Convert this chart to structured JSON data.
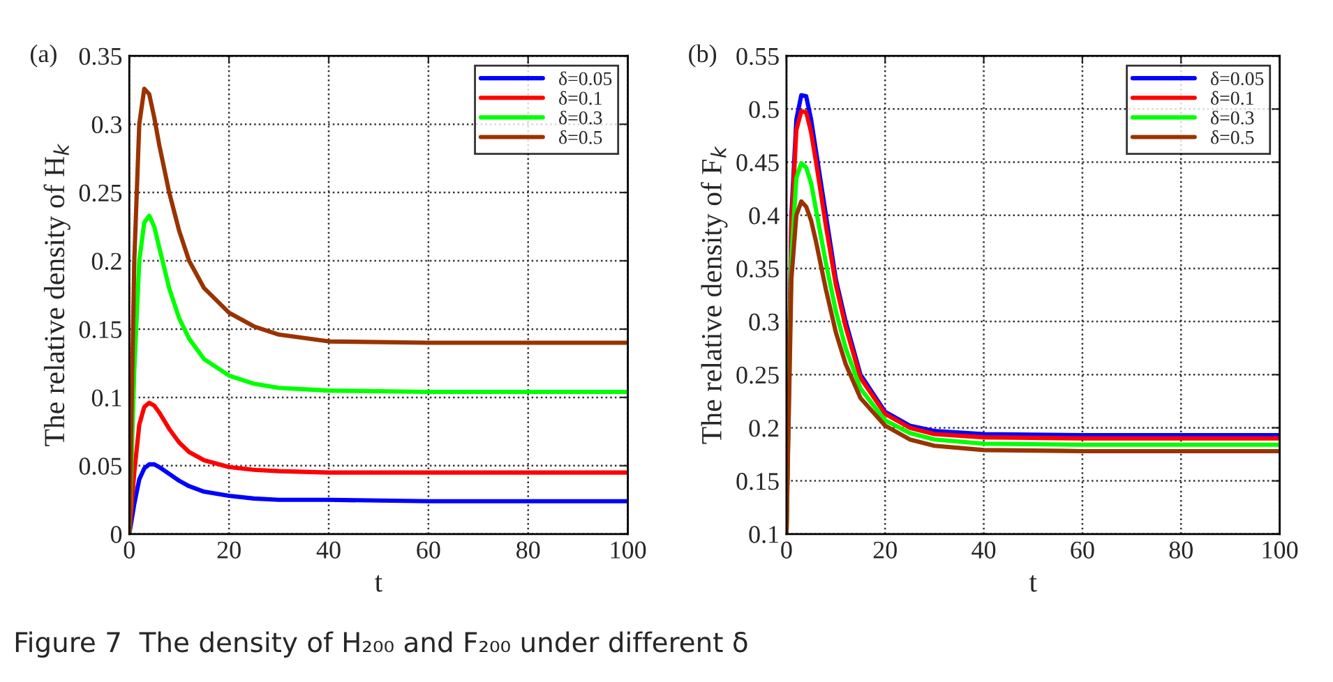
{
  "chart_data": [
    {
      "type": "line",
      "ylabel": "The relative density of H$_{k}$",
      "xlabel": "t",
      "annotations": [
        "(a)",
        "Figure 7  The density of H₂₀₀ and F₂₀₀ under different δ"
      ],
      "x": [
        0,
        1,
        2,
        3,
        4,
        5,
        6,
        8,
        10,
        12,
        15,
        20,
        25,
        30,
        40,
        60,
        80,
        100
      ],
      "xlim": [
        0,
        100
      ],
      "xticks": [
        0,
        20,
        40,
        60,
        80,
        100
      ],
      "ylim": [
        0,
        0.35
      ],
      "yticks": [
        0,
        0.05,
        0.1,
        0.15,
        0.2,
        0.25,
        0.3,
        0.35
      ],
      "grid": true,
      "legend": "top right",
      "marker": "none",
      "line_style": "solid",
      "series": [
        {
          "name": "δ=0.05",
          "color": "#0000ff",
          "values": [
            0,
            0.022,
            0.04,
            0.048,
            0.051,
            0.051,
            0.049,
            0.044,
            0.039,
            0.035,
            0.031,
            0.028,
            0.026,
            0.025,
            0.025,
            0.024,
            0.024,
            0.024
          ]
        },
        {
          "name": "δ=0.1",
          "color": "#ff0000",
          "values": [
            0,
            0.045,
            0.08,
            0.093,
            0.096,
            0.094,
            0.089,
            0.077,
            0.067,
            0.06,
            0.054,
            0.049,
            0.047,
            0.046,
            0.045,
            0.045,
            0.045,
            0.045
          ]
        },
        {
          "name": "δ=0.3",
          "color": "#00ff00",
          "values": [
            0,
            0.12,
            0.2,
            0.228,
            0.233,
            0.225,
            0.21,
            0.18,
            0.158,
            0.143,
            0.128,
            0.116,
            0.11,
            0.107,
            0.105,
            0.104,
            0.104,
            0.104
          ]
        },
        {
          "name": "δ=0.5",
          "color": "#993300",
          "values": [
            0,
            0.2,
            0.3,
            0.326,
            0.322,
            0.305,
            0.285,
            0.25,
            0.222,
            0.2,
            0.18,
            0.162,
            0.152,
            0.146,
            0.141,
            0.14,
            0.14,
            0.14
          ]
        }
      ]
    },
    {
      "type": "line",
      "ylabel": "The relative density of F$_{k}$",
      "xlabel": "t",
      "annotations": [
        "(b)"
      ],
      "x": [
        0,
        1,
        2,
        3,
        4,
        5,
        6,
        8,
        10,
        12,
        15,
        20,
        25,
        30,
        40,
        60,
        80,
        100
      ],
      "xlim": [
        0,
        100
      ],
      "xticks": [
        0,
        20,
        40,
        60,
        80,
        100
      ],
      "ylim": [
        0.1,
        0.55
      ],
      "yticks": [
        0.1,
        0.15,
        0.2,
        0.25,
        0.3,
        0.35,
        0.4,
        0.45,
        0.5,
        0.55
      ],
      "grid": true,
      "legend": "top right",
      "marker": "none",
      "line_style": "solid",
      "series": [
        {
          "name": "δ=0.05",
          "color": "#0000ff",
          "values": [
            0.1,
            0.4,
            0.49,
            0.513,
            0.512,
            0.49,
            0.46,
            0.4,
            0.34,
            0.3,
            0.25,
            0.215,
            0.202,
            0.197,
            0.194,
            0.193,
            0.193,
            0.193
          ]
        },
        {
          "name": "δ=0.1",
          "color": "#ff0000",
          "values": [
            0.1,
            0.39,
            0.48,
            0.498,
            0.497,
            0.478,
            0.45,
            0.39,
            0.335,
            0.295,
            0.247,
            0.213,
            0.2,
            0.194,
            0.191,
            0.19,
            0.19,
            0.19
          ]
        },
        {
          "name": "δ=0.3",
          "color": "#00ff00",
          "values": [
            0.1,
            0.36,
            0.435,
            0.449,
            0.445,
            0.43,
            0.405,
            0.355,
            0.31,
            0.275,
            0.237,
            0.207,
            0.195,
            0.189,
            0.185,
            0.184,
            0.184,
            0.184
          ]
        },
        {
          "name": "δ=0.5",
          "color": "#993300",
          "values": [
            0.1,
            0.34,
            0.4,
            0.413,
            0.408,
            0.395,
            0.375,
            0.33,
            0.29,
            0.26,
            0.228,
            0.202,
            0.189,
            0.183,
            0.179,
            0.178,
            0.178,
            0.178
          ]
        }
      ]
    }
  ]
}
